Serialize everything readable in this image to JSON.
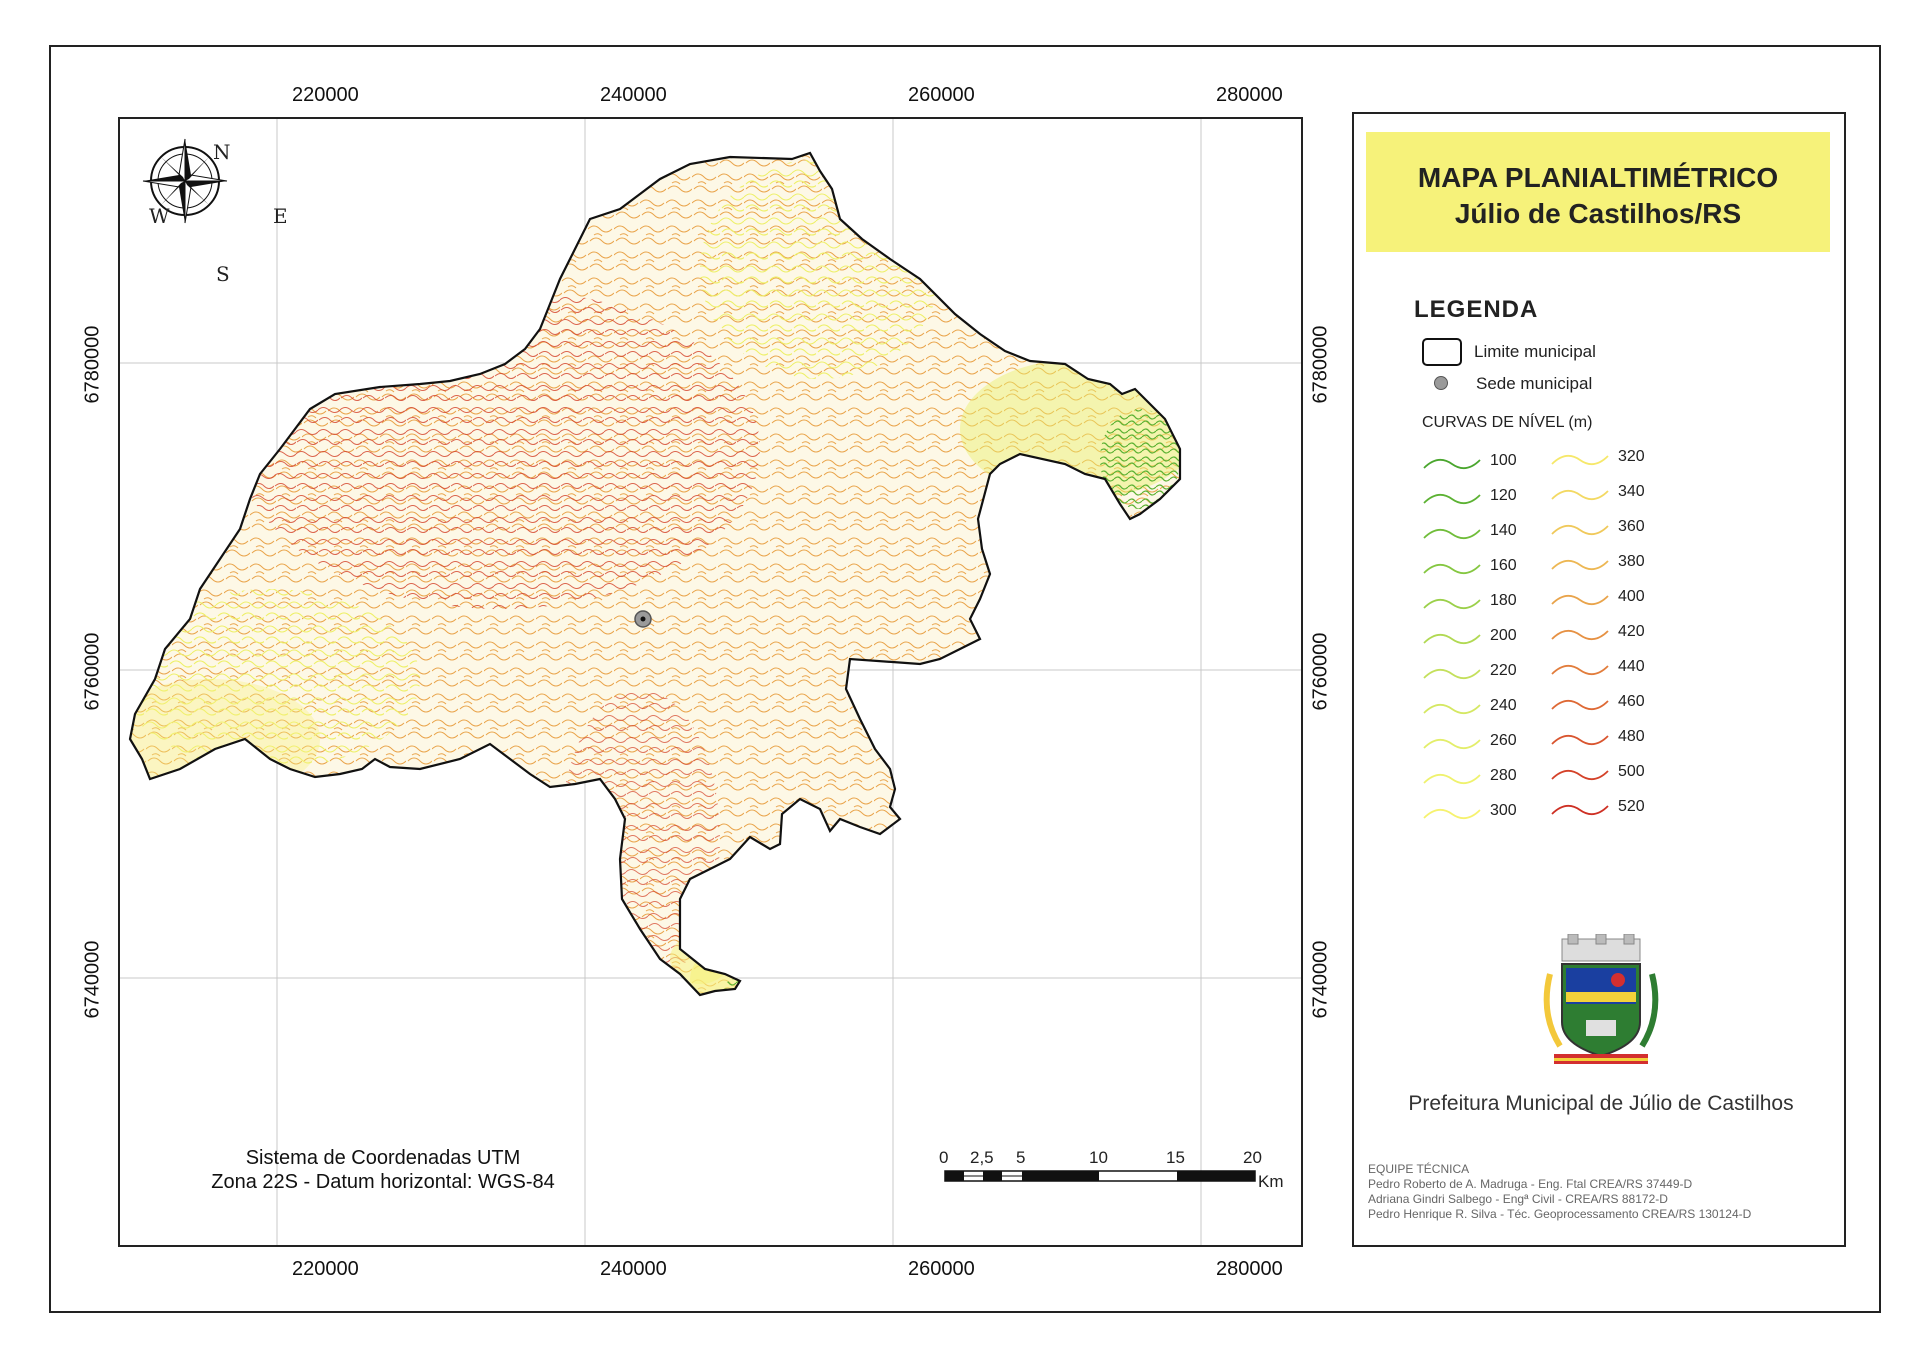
{
  "title": {
    "line1": "MAPA PLANIALTIMÉTRICO",
    "line2": "Júlio de Castilhos/RS"
  },
  "legend": {
    "heading": "LEGENDA",
    "boundary_label": "Limite municipal",
    "seat_label": "Sede municipal",
    "contours_heading": "CURVAS DE NÍVEL (m)",
    "contours_left": [
      {
        "value": "100",
        "color": "#4aa62e"
      },
      {
        "value": "120",
        "color": "#5cb233"
      },
      {
        "value": "140",
        "color": "#70bd3a"
      },
      {
        "value": "160",
        "color": "#85c741"
      },
      {
        "value": "180",
        "color": "#9bd04a"
      },
      {
        "value": "200",
        "color": "#b1d953"
      },
      {
        "value": "220",
        "color": "#c4e05c"
      },
      {
        "value": "240",
        "color": "#d5e863"
      },
      {
        "value": "260",
        "color": "#e3ee6a"
      },
      {
        "value": "280",
        "color": "#eff26e"
      },
      {
        "value": "300",
        "color": "#f6f26f"
      }
    ],
    "contours_right": [
      {
        "value": "320",
        "color": "#f6e86a"
      },
      {
        "value": "340",
        "color": "#f3d963"
      },
      {
        "value": "360",
        "color": "#f0c95b"
      },
      {
        "value": "380",
        "color": "#edb753"
      },
      {
        "value": "400",
        "color": "#e9a44b"
      },
      {
        "value": "420",
        "color": "#e69143"
      },
      {
        "value": "440",
        "color": "#e27d3c"
      },
      {
        "value": "460",
        "color": "#de6935"
      },
      {
        "value": "480",
        "color": "#d9552f"
      },
      {
        "value": "500",
        "color": "#d44229"
      },
      {
        "value": "520",
        "color": "#ce3024"
      }
    ]
  },
  "grid": {
    "x_ticks": [
      "220000",
      "240000",
      "260000",
      "280000"
    ],
    "y_ticks": [
      "6780000",
      "6760000",
      "6740000"
    ]
  },
  "compass": {
    "n": "N",
    "s": "S",
    "e": "E",
    "w": "W"
  },
  "scale_bar": {
    "labels": [
      "0",
      "2,5",
      "5",
      "10",
      "15",
      "20"
    ],
    "unit": "Km"
  },
  "crs": {
    "line1": "Sistema de Coordenadas UTM",
    "line2": "Zona 22S - Datum horizontal: WGS-84"
  },
  "institution": "Prefeitura Municipal de Júlio de Castilhos",
  "team": {
    "heading": "EQUIPE TÉCNICA",
    "members": [
      "Pedro Roberto de A. Madruga - Eng. Ftal CREA/RS 37449-D",
      "Adriana Gindri Salbego - Engª Civil - CREA/RS 88172-D",
      "Pedro Henrique R. Silva - Téc. Geoprocessamento CREA/RS 130124-D"
    ]
  }
}
